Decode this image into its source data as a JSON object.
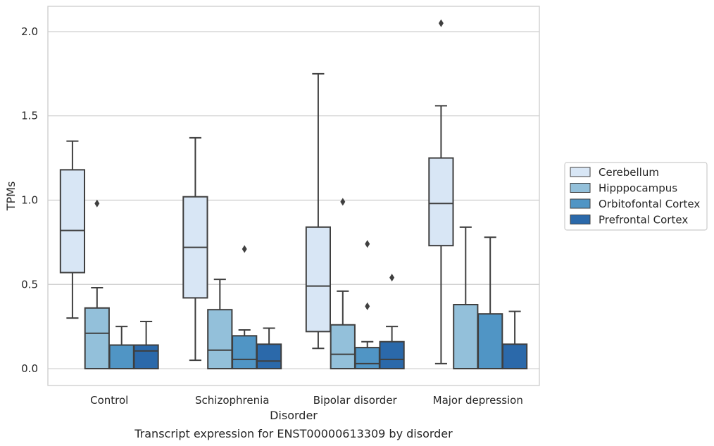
{
  "chart_data": {
    "type": "box",
    "title": "",
    "caption": "Transcript expression for ENST00000613309 by disorder",
    "xlabel": "Disorder",
    "ylabel": "TPMs",
    "ylim": [
      -0.1,
      2.15
    ],
    "yticks": [
      0.0,
      0.5,
      1.0,
      1.5,
      2.0
    ],
    "ytick_labels": [
      "0.0",
      "0.5",
      "1.0",
      "1.5",
      "2.0"
    ],
    "grid": "horizontal",
    "legend_position": "right",
    "categories": [
      "Control",
      "Schizophrenia",
      "Bipolar disorder",
      "Major depression"
    ],
    "series": [
      {
        "name": "Cerebellum",
        "color": "#d8e6f5",
        "boxes": [
          {
            "min": 0.3,
            "q1": 0.57,
            "median": 0.82,
            "q3": 1.18,
            "max": 1.35,
            "outliers": []
          },
          {
            "min": 0.05,
            "q1": 0.42,
            "median": 0.72,
            "q3": 1.02,
            "max": 1.37,
            "outliers": []
          },
          {
            "min": 0.12,
            "q1": 0.22,
            "median": 0.49,
            "q3": 0.84,
            "max": 1.75,
            "outliers": []
          },
          {
            "min": 0.03,
            "q1": 0.73,
            "median": 0.98,
            "q3": 1.25,
            "max": 1.56,
            "outliers": [
              2.05
            ]
          }
        ]
      },
      {
        "name": "Hipppocampus",
        "color": "#93c0da",
        "boxes": [
          {
            "min": 0.0,
            "q1": 0.0,
            "median": 0.21,
            "q3": 0.36,
            "max": 0.48,
            "outliers": [
              0.98
            ]
          },
          {
            "min": 0.0,
            "q1": 0.0,
            "median": 0.11,
            "q3": 0.35,
            "max": 0.53,
            "outliers": []
          },
          {
            "min": 0.0,
            "q1": 0.0,
            "median": 0.085,
            "q3": 0.26,
            "max": 0.46,
            "outliers": [
              0.99
            ]
          },
          {
            "min": 0.0,
            "q1": 0.0,
            "median": 0.0,
            "q3": 0.38,
            "max": 0.84,
            "outliers": []
          }
        ]
      },
      {
        "name": "Orbitofontal Cortex",
        "color": "#5095c5",
        "boxes": [
          {
            "min": 0.0,
            "q1": 0.0,
            "median": 0.0,
            "q3": 0.14,
            "max": 0.25,
            "outliers": []
          },
          {
            "min": 0.0,
            "q1": 0.0,
            "median": 0.055,
            "q3": 0.195,
            "max": 0.23,
            "outliers": [
              0.71
            ]
          },
          {
            "min": 0.0,
            "q1": 0.0,
            "median": 0.03,
            "q3": 0.125,
            "max": 0.16,
            "outliers": [
              0.74,
              0.37
            ]
          },
          {
            "min": 0.0,
            "q1": 0.0,
            "median": 0.0,
            "q3": 0.325,
            "max": 0.78,
            "outliers": []
          }
        ]
      },
      {
        "name": "Prefrontal Cortex",
        "color": "#2b69aa",
        "boxes": [
          {
            "min": 0.0,
            "q1": 0.0,
            "median": 0.105,
            "q3": 0.14,
            "max": 0.28,
            "outliers": []
          },
          {
            "min": 0.0,
            "q1": 0.0,
            "median": 0.045,
            "q3": 0.145,
            "max": 0.24,
            "outliers": []
          },
          {
            "min": 0.0,
            "q1": 0.0,
            "median": 0.055,
            "q3": 0.16,
            "max": 0.25,
            "outliers": [
              0.54
            ]
          },
          {
            "min": 0.0,
            "q1": 0.0,
            "median": 0.0,
            "q3": 0.145,
            "max": 0.34,
            "outliers": []
          }
        ]
      }
    ]
  }
}
